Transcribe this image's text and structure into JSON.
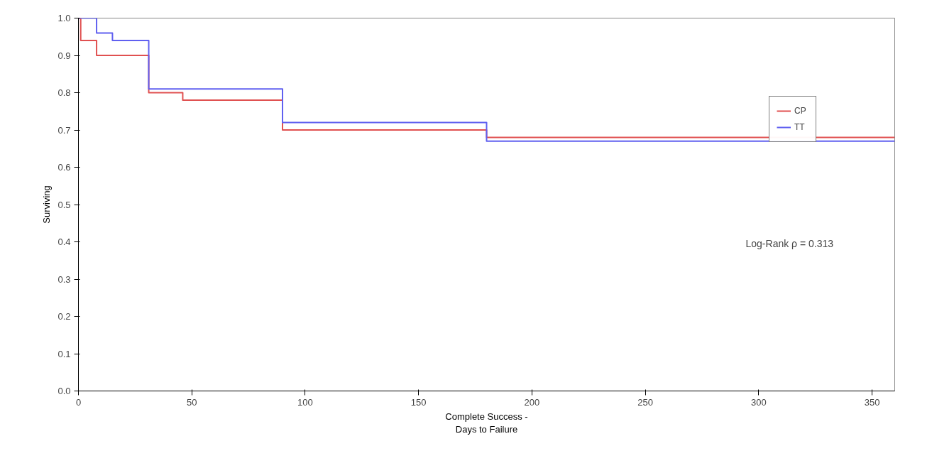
{
  "chart_data": {
    "type": "step",
    "xlabel": "Complete Success -\nDays to Failure",
    "ylabel": "Surviving",
    "series": [
      {
        "name": "CP",
        "color": "#e05050",
        "x": [
          0,
          1,
          8,
          31,
          46,
          90,
          180,
          360
        ],
        "values": [
          1.0,
          0.94,
          0.9,
          0.8,
          0.78,
          0.7,
          0.68,
          0.68
        ]
      },
      {
        "name": "TT",
        "color": "#6060f0",
        "x": [
          0,
          8,
          15,
          31,
          90,
          180,
          360
        ],
        "values": [
          1.0,
          0.96,
          0.94,
          0.81,
          0.72,
          0.67,
          0.67
        ]
      }
    ],
    "xlim": [
      0,
      360
    ],
    "xticks": [
      0,
      50,
      100,
      150,
      200,
      250,
      300,
      350
    ],
    "ylim": [
      0,
      1
    ],
    "yticks": [
      {
        "value": 0,
        "label": "0.0"
      },
      0.1,
      0.2,
      0.3,
      0.4,
      0.5,
      0.6,
      0.7,
      0.8,
      0.9,
      {
        "value": 1,
        "label": "1.0"
      }
    ],
    "annotations": [
      "Log-Rank ρ = 0.313"
    ],
    "grid": false,
    "legend": "top right",
    "line_style": "solid"
  }
}
